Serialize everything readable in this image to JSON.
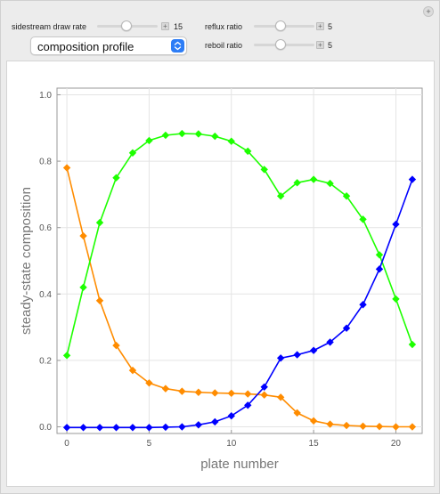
{
  "controls": {
    "sidestream": {
      "label": "sidestream draw rate",
      "value": "15",
      "fraction": 0.48
    },
    "reflux": {
      "label": "reflux ratio",
      "value": "5",
      "fraction": 0.42
    },
    "reboil": {
      "label": "reboil ratio",
      "value": "5",
      "fraction": 0.42
    },
    "plot_select": {
      "value": "composition profile"
    }
  },
  "colors": {
    "orange": "#ff8c00",
    "green": "#1dff00",
    "blue": "#0000ff",
    "accent": "#2d7df6"
  },
  "chart_data": {
    "type": "line",
    "xlabel": "plate number",
    "ylabel": "steady-state  composition",
    "xlim": [
      -0.6,
      21.6
    ],
    "ylim": [
      -0.02,
      1.02
    ],
    "x_ticks": [
      0,
      5,
      10,
      15,
      20
    ],
    "y_ticks": [
      0.0,
      0.2,
      0.4,
      0.6,
      0.8,
      1.0
    ],
    "x_tick_labels": [
      "0",
      "5",
      "10",
      "15",
      "20"
    ],
    "y_tick_labels": [
      "0.0",
      "0.2",
      "0.4",
      "0.6",
      "0.8",
      "1.0"
    ],
    "grid": true,
    "marker": "diamond",
    "x": [
      0,
      1,
      2,
      3,
      4,
      5,
      6,
      7,
      8,
      9,
      10,
      11,
      12,
      13,
      14,
      15,
      16,
      17,
      18,
      19,
      20,
      21
    ],
    "series": [
      {
        "color": "#ff8c00",
        "values": [
          0.78,
          0.575,
          0.38,
          0.245,
          0.17,
          0.132,
          0.115,
          0.107,
          0.104,
          0.102,
          0.101,
          0.099,
          0.096,
          0.089,
          0.042,
          0.018,
          0.008,
          0.004,
          0.002,
          0.001,
          0.0,
          0.0
        ]
      },
      {
        "color": "#1dff00",
        "values": [
          0.215,
          0.42,
          0.615,
          0.75,
          0.825,
          0.862,
          0.878,
          0.883,
          0.882,
          0.875,
          0.86,
          0.83,
          0.775,
          0.695,
          0.735,
          0.745,
          0.733,
          0.695,
          0.625,
          0.518,
          0.385,
          0.248
        ]
      },
      {
        "color": "#0000ff",
        "values": [
          -0.002,
          -0.002,
          -0.002,
          -0.002,
          -0.002,
          -0.002,
          -0.001,
          0.0,
          0.006,
          0.015,
          0.033,
          0.065,
          0.12,
          0.207,
          0.217,
          0.23,
          0.255,
          0.297,
          0.368,
          0.475,
          0.61,
          0.745
        ]
      }
    ]
  }
}
